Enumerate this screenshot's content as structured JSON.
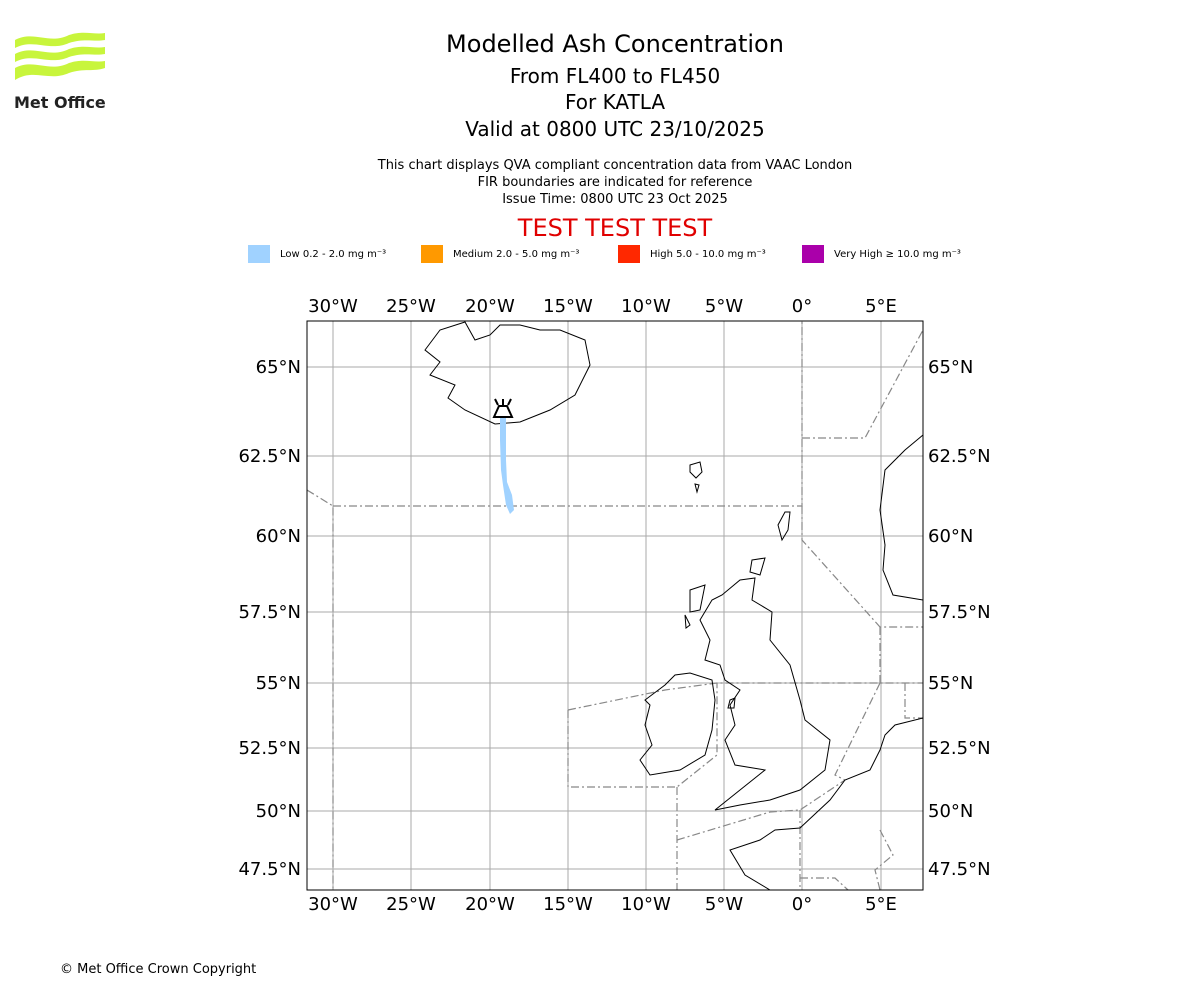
{
  "logo": {
    "text": "Met Office",
    "color": "#c8f53c"
  },
  "header": {
    "title": "Modelled Ash Concentration",
    "levels": "From FL400 to FL450",
    "volcano": "For KATLA",
    "valid": "Valid at 0800 UTC 23/10/2025",
    "note1": "This chart displays QVA compliant concentration data from VAAC London",
    "note2": "FIR boundaries are indicated for reference",
    "issue": "Issue Time: 0800 UTC 23 Oct 2025",
    "test_banner": "TEST TEST TEST"
  },
  "legend": [
    {
      "label": "Low 0.2 - 2.0 mg m⁻³",
      "color": "#a0d2ff"
    },
    {
      "label": "Medium 2.0 - 5.0 mg m⁻³",
      "color": "#ff9900"
    },
    {
      "label": "High 5.0 - 10.0 mg m⁻³",
      "color": "#ff2800"
    },
    {
      "label": "Very High ≥ 10.0 mg m⁻³",
      "color": "#aa00aa"
    }
  ],
  "map": {
    "lon_labels": [
      "30°W",
      "25°W",
      "20°W",
      "15°W",
      "10°W",
      "5°W",
      "0°",
      "5°E"
    ],
    "lat_labels": [
      "65°N",
      "62.5°N",
      "60°N",
      "57.5°N",
      "55°N",
      "52.5°N",
      "50°N",
      "47.5°N"
    ],
    "ash_level": "Low",
    "volcano_icon": "volcano-icon"
  },
  "footer": {
    "copyright": "© Met Office Crown Copyright"
  }
}
